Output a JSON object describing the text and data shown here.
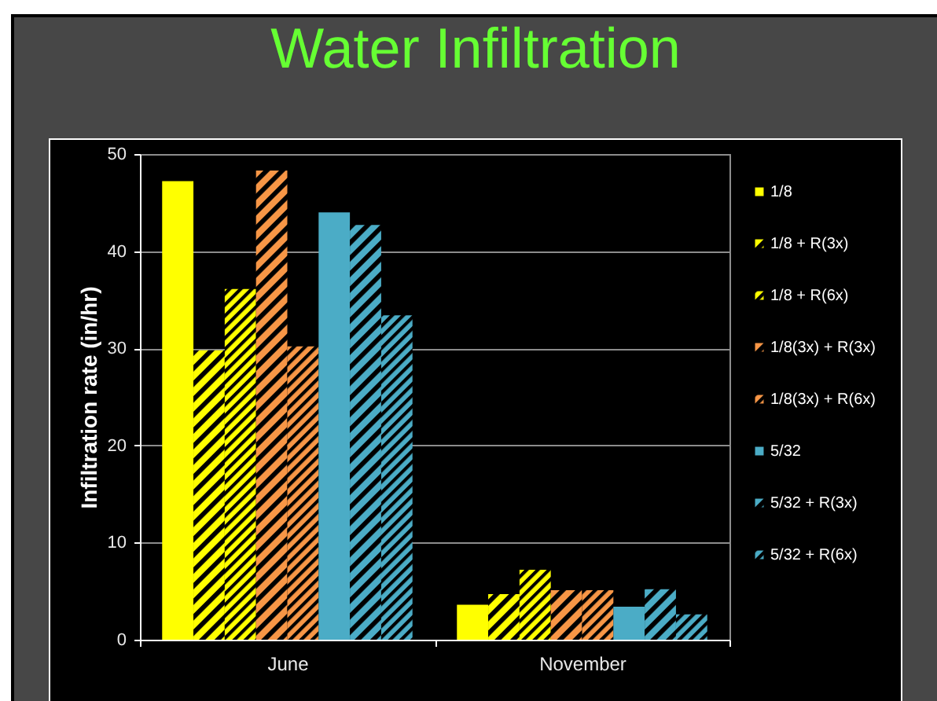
{
  "chart_data": {
    "type": "bar",
    "title": "Water Infiltration",
    "ylabel": "Infiltration rate (in/hr)",
    "categories": [
      "June",
      "November"
    ],
    "series": [
      {
        "name": "1/8",
        "color": "#ffff00",
        "values": [
          47.2,
          3.6
        ]
      },
      {
        "name": "1/8 + R(3x)",
        "color": "#ffff00",
        "values": [
          29.8,
          4.7
        ]
      },
      {
        "name": "1/8 + R(6x)",
        "color": "#ffff00",
        "values": [
          36.1,
          7.2
        ]
      },
      {
        "name": "1/8(3x) + R(3x)",
        "color": "#f79646",
        "values": [
          48.3,
          5.1
        ]
      },
      {
        "name": "1/8(3x) + R(6x)",
        "color": "#f79646",
        "values": [
          30.2,
          5.1
        ]
      },
      {
        "name": "5/32",
        "color": "#4bacc6",
        "values": [
          44.0,
          3.4
        ]
      },
      {
        "name": "5/32 + R(3x)",
        "color": "#4bacc6",
        "values": [
          42.7,
          5.2
        ]
      },
      {
        "name": "5/32 + R(6x)",
        "color": "#4bacc6",
        "values": [
          33.4,
          2.6
        ]
      }
    ],
    "ylim": [
      0,
      50
    ],
    "yticks": [
      0,
      10,
      20,
      30,
      40,
      50
    ],
    "grid": "y",
    "legend": "right"
  }
}
